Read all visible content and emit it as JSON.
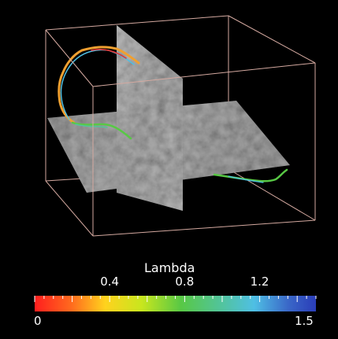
{
  "colorbar": {
    "title": "Lambda",
    "min_label": "0",
    "max_label": "1.5",
    "tick_labels": [
      "0.4",
      "0.8",
      "1.2"
    ],
    "range": [
      0,
      1.5
    ],
    "colormap": [
      "#ff1e1e",
      "#ff6a1e",
      "#ffd21e",
      "#c8e61e",
      "#58c845",
      "#52c49a",
      "#4fbfe4",
      "#3a68c8",
      "#2a3db8"
    ]
  },
  "scene": {
    "background": "#000000",
    "box_color": "#d4a9a0"
  }
}
